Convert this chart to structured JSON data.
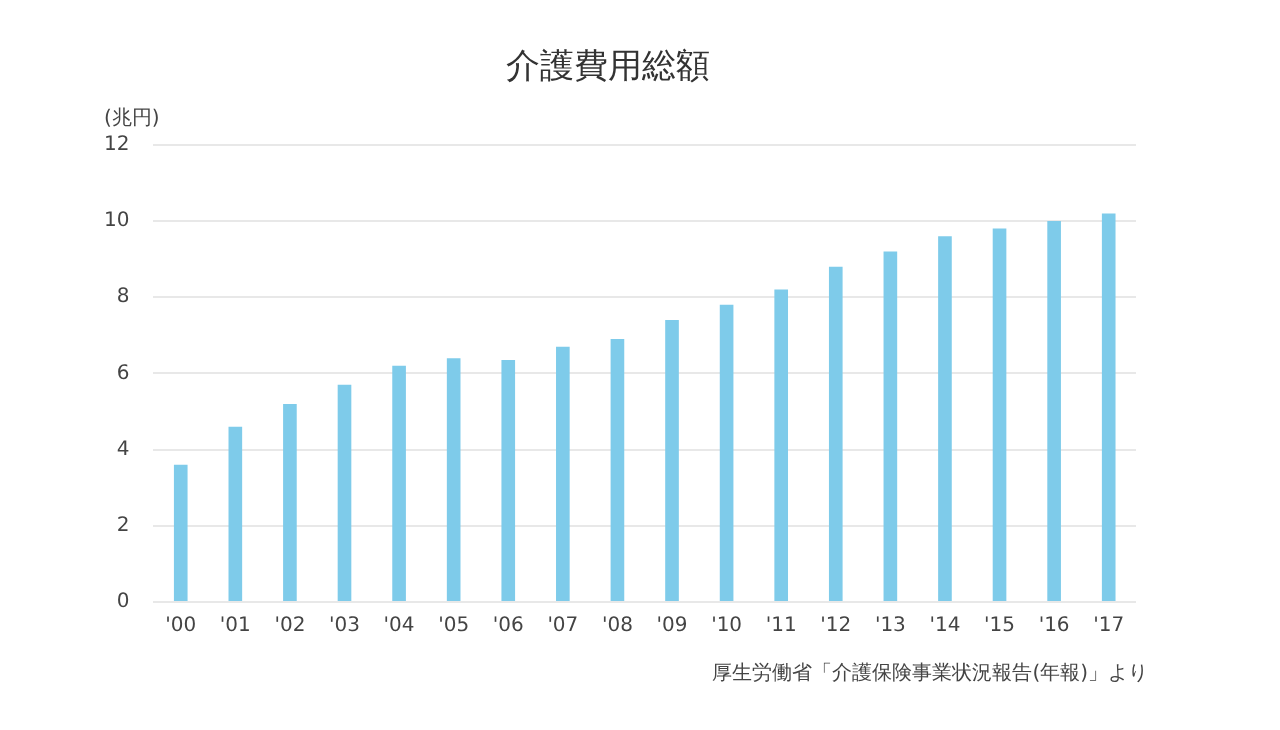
{
  "chart_data": {
    "type": "bar",
    "title": "介護費用総額",
    "ylabel": "(兆円)",
    "categories": [
      "'00",
      "'01",
      "'02",
      "'03",
      "'04",
      "'05",
      "'06",
      "'07",
      "'08",
      "'09",
      "'10",
      "'11",
      "'12",
      "'13",
      "'14",
      "'15",
      "'16",
      "'17"
    ],
    "values": [
      3.6,
      4.6,
      5.2,
      5.7,
      6.2,
      6.4,
      6.35,
      6.7,
      6.9,
      7.4,
      7.8,
      8.2,
      8.8,
      9.2,
      9.6,
      9.8,
      10.0,
      10.2
    ],
    "color": "#7ecbea",
    "ylim": [
      0,
      12
    ],
    "yticks": [
      0,
      2,
      4,
      6,
      8,
      10,
      12
    ],
    "grid": "y",
    "annotations": [
      "厚生労働省「介護保険事業状況報告(年報)」より"
    ]
  }
}
